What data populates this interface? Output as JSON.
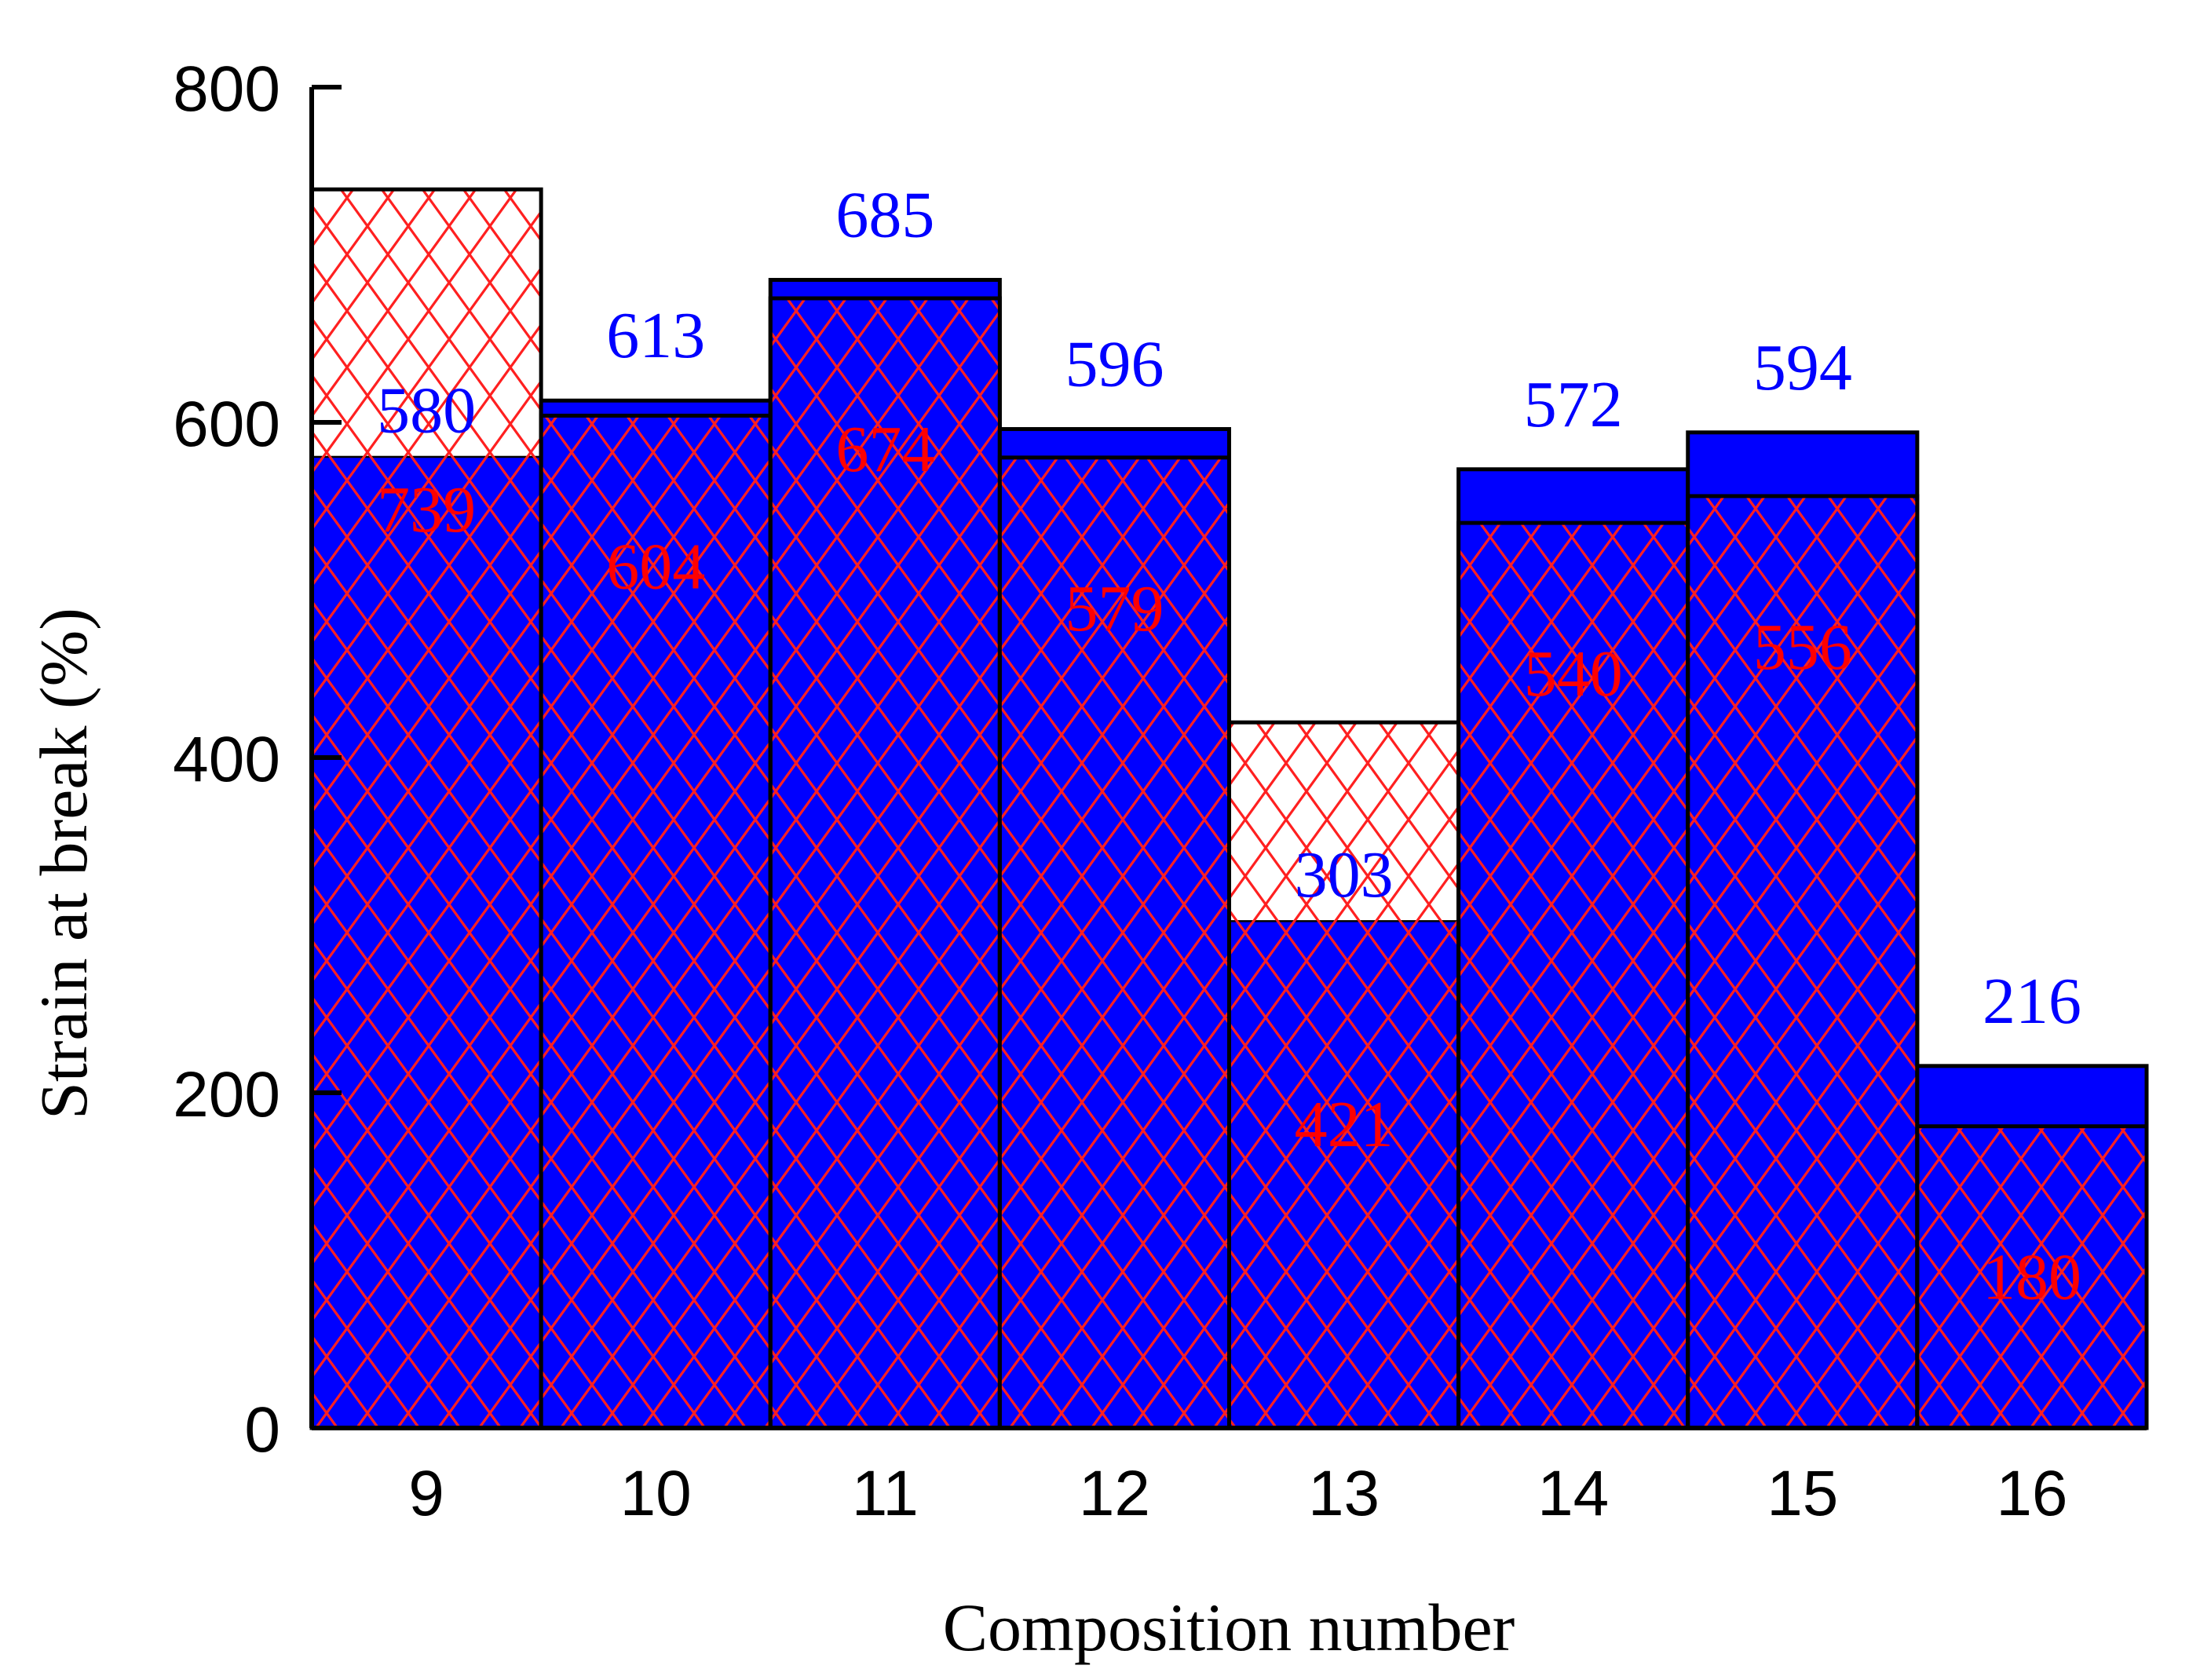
{
  "chart_data": {
    "type": "bar",
    "title": "",
    "xlabel": "Composition number",
    "ylabel": "Strain at break (%)",
    "ylim": [
      0,
      800
    ],
    "yticks": [
      "0",
      "200",
      "400",
      "600",
      "800"
    ],
    "categories": [
      "9",
      "10",
      "11",
      "12",
      "13",
      "14",
      "15",
      "16"
    ],
    "grid": false,
    "legend": null,
    "series": [
      {
        "name": "blue (solid fill)",
        "color": "#0000ff",
        "label_color": "#0000ff",
        "values": [
          580,
          613,
          685,
          596,
          303,
          572,
          594,
          216
        ]
      },
      {
        "name": "red (cross-hatch)",
        "color": "#ff0000",
        "label_color": "#ff0000",
        "values": [
          739,
          604,
          674,
          579,
          421,
          540,
          556,
          180
        ]
      }
    ],
    "annotations": {
      "blue_labels": [
        "580",
        "613",
        "685",
        "596",
        "303",
        "572",
        "594",
        "216"
      ],
      "red_labels": [
        "739",
        "604",
        "674",
        "579",
        "421",
        "540",
        "556",
        "180"
      ]
    }
  }
}
